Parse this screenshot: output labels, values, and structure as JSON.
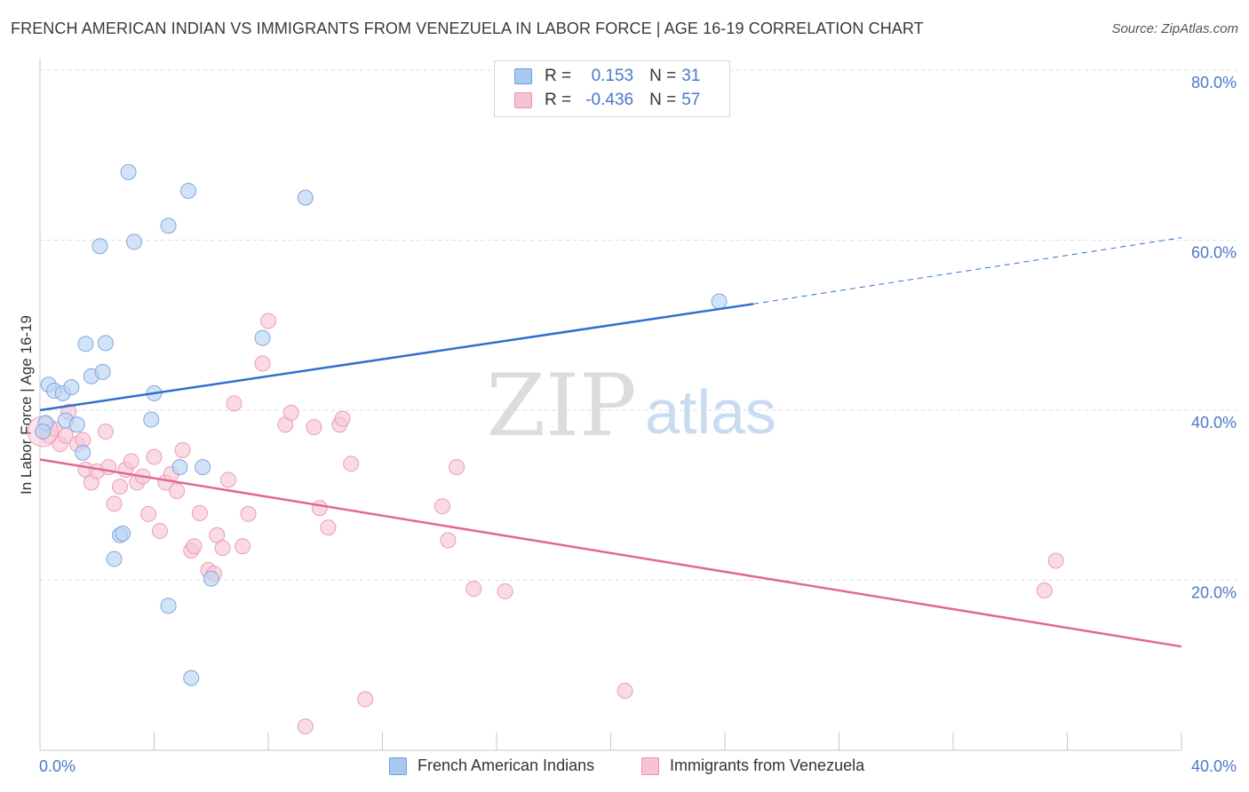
{
  "header": {
    "title": "FRENCH AMERICAN INDIAN VS IMMIGRANTS FROM VENEZUELA IN LABOR FORCE | AGE 16-19 CORRELATION CHART",
    "source": "Source: ZipAtlas.com"
  },
  "watermark": {
    "zip": "ZIP",
    "atlas": "atlas"
  },
  "legend": {
    "r_label": "R =",
    "n_label": "N =",
    "rows": [
      {
        "r": "0.153",
        "n": "31",
        "color": "#a9c8f0",
        "stroke": "#6f9fdc"
      },
      {
        "r": "-0.436",
        "n": "57",
        "color": "#f7c3d2",
        "stroke": "#e993ae"
      }
    ]
  },
  "colors": {
    "blue_point_fill": "#bcd4f2",
    "blue_point_stroke": "#7fa8dd",
    "pink_point_fill": "#f8c8d6",
    "pink_point_stroke": "#ec9cb6",
    "blue_line": "#2f6fce",
    "pink_line": "#e0679a",
    "axis_text": "#4a78c8",
    "grid": "#dddddd"
  },
  "chart_data": {
    "type": "scatter",
    "title": "FRENCH AMERICAN INDIAN VS IMMIGRANTS FROM VENEZUELA IN LABOR FORCE | AGE 16-19 CORRELATION CHART",
    "xlabel": "",
    "ylabel": "In Labor Force | Age 16-19",
    "xlim": [
      0,
      40
    ],
    "ylim": [
      0,
      80
    ],
    "x_tick_labels": [
      "0.0%",
      "40.0%"
    ],
    "y_tick_labels": [
      "20.0%",
      "40.0%",
      "60.0%",
      "80.0%"
    ],
    "y_ticks": [
      20,
      40,
      60,
      80
    ],
    "x_ticks": [
      0,
      4,
      8,
      12,
      16,
      20,
      24,
      28,
      32,
      36,
      40
    ],
    "grid": true,
    "legend_position": "top-center",
    "series": [
      {
        "name": "French American Indians",
        "r": 0.153,
        "n": 31,
        "trend": {
          "x": [
            0,
            25
          ],
          "y": [
            40.0,
            52.5
          ],
          "extended_x": [
            25,
            40
          ],
          "extended_y": [
            52.5,
            60.3
          ]
        },
        "points": [
          [
            0.2,
            38.5
          ],
          [
            0.3,
            43.0
          ],
          [
            0.5,
            42.3
          ],
          [
            0.8,
            42.0
          ],
          [
            0.9,
            38.8
          ],
          [
            1.1,
            42.7
          ],
          [
            1.3,
            38.3
          ],
          [
            1.5,
            35.0
          ],
          [
            1.6,
            47.8
          ],
          [
            1.8,
            44.0
          ],
          [
            2.2,
            44.5
          ],
          [
            2.3,
            47.9
          ],
          [
            2.1,
            59.3
          ],
          [
            3.1,
            68.0
          ],
          [
            3.3,
            59.8
          ],
          [
            2.6,
            22.5
          ],
          [
            2.8,
            25.3
          ],
          [
            2.9,
            25.5
          ],
          [
            3.9,
            38.9
          ],
          [
            4.0,
            42.0
          ],
          [
            4.5,
            61.7
          ],
          [
            5.2,
            65.8
          ],
          [
            4.5,
            17.0
          ],
          [
            4.9,
            33.3
          ],
          [
            5.7,
            33.3
          ],
          [
            6.0,
            20.2
          ],
          [
            5.3,
            8.5
          ],
          [
            7.8,
            48.5
          ],
          [
            9.3,
            65.0
          ],
          [
            23.8,
            52.8
          ],
          [
            0.1,
            37.5
          ]
        ]
      },
      {
        "name": "Immigrants from Venezuela",
        "r": -0.436,
        "n": 57,
        "trend": {
          "x": [
            0,
            40
          ],
          "y": [
            34.2,
            12.2
          ]
        },
        "points": [
          [
            0.1,
            37.5
          ],
          [
            0.3,
            37.0
          ],
          [
            0.5,
            37.8
          ],
          [
            0.7,
            36.0
          ],
          [
            0.9,
            37.0
          ],
          [
            1.0,
            39.8
          ],
          [
            1.3,
            36.0
          ],
          [
            1.5,
            36.5
          ],
          [
            1.6,
            33.0
          ],
          [
            1.8,
            31.5
          ],
          [
            2.0,
            32.8
          ],
          [
            2.3,
            37.5
          ],
          [
            2.4,
            33.3
          ],
          [
            2.6,
            29.0
          ],
          [
            2.8,
            31.0
          ],
          [
            3.0,
            33.0
          ],
          [
            3.2,
            34.0
          ],
          [
            3.4,
            31.5
          ],
          [
            3.6,
            32.2
          ],
          [
            3.8,
            27.8
          ],
          [
            4.0,
            34.5
          ],
          [
            4.2,
            25.8
          ],
          [
            4.4,
            31.5
          ],
          [
            4.6,
            32.5
          ],
          [
            4.8,
            30.5
          ],
          [
            5.0,
            35.3
          ],
          [
            5.3,
            23.5
          ],
          [
            5.4,
            24.0
          ],
          [
            5.6,
            27.9
          ],
          [
            5.9,
            21.2
          ],
          [
            6.1,
            20.8
          ],
          [
            6.2,
            25.3
          ],
          [
            6.4,
            23.8
          ],
          [
            6.6,
            31.8
          ],
          [
            6.8,
            40.8
          ],
          [
            7.1,
            24.0
          ],
          [
            7.3,
            27.8
          ],
          [
            7.8,
            45.5
          ],
          [
            8.0,
            50.5
          ],
          [
            8.6,
            38.3
          ],
          [
            8.8,
            39.7
          ],
          [
            9.6,
            38.0
          ],
          [
            9.8,
            28.5
          ],
          [
            10.1,
            26.2
          ],
          [
            10.5,
            38.3
          ],
          [
            10.6,
            39.0
          ],
          [
            10.9,
            33.7
          ],
          [
            9.3,
            2.8
          ],
          [
            11.4,
            6.0
          ],
          [
            14.1,
            28.7
          ],
          [
            14.3,
            24.7
          ],
          [
            14.6,
            33.3
          ],
          [
            15.2,
            19.0
          ],
          [
            16.3,
            18.7
          ],
          [
            20.5,
            7.0
          ],
          [
            35.2,
            18.8
          ],
          [
            35.6,
            22.3
          ]
        ]
      }
    ]
  }
}
